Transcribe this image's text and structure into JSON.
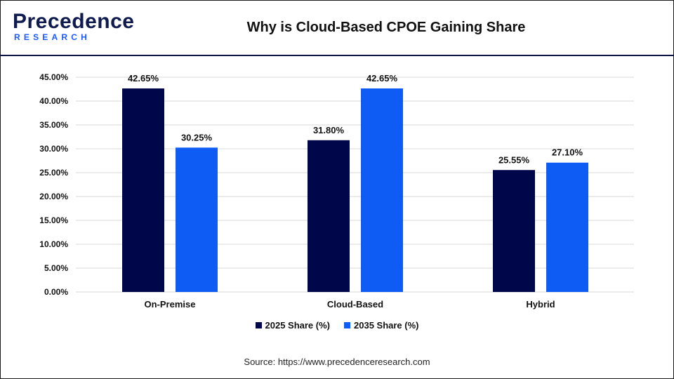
{
  "header": {
    "logo_main": "Precedence",
    "logo_sub": "RESEARCH",
    "title": "Why is Cloud-Based CPOE Gaining Share"
  },
  "source": "Source: https://www.precedenceresearch.com",
  "colors": {
    "series_2025": "#00064a",
    "series_2035": "#0f5cf5",
    "grid": "#d9d9d9",
    "brand_dark": "#0f1a4f",
    "brand_blue": "#1a5aff"
  },
  "chart_data": {
    "type": "bar",
    "title": "Why is Cloud-Based CPOE Gaining Share",
    "xlabel": "",
    "ylabel": "",
    "categories": [
      "On-Premise",
      "Cloud-Based",
      "Hybrid"
    ],
    "series": [
      {
        "name": "2025 Share (%)",
        "values": [
          42.65,
          31.8,
          25.55
        ],
        "labels": [
          "42.65%",
          "31.80%",
          "25.55%"
        ]
      },
      {
        "name": "2035 Share (%)",
        "values": [
          30.25,
          42.65,
          27.1
        ],
        "labels": [
          "30.25%",
          "42.65%",
          "27.10%"
        ]
      }
    ],
    "ylim": [
      0,
      45
    ],
    "yticks": [
      0,
      5,
      10,
      15,
      20,
      25,
      30,
      35,
      40,
      45
    ],
    "ytick_labels": [
      "0.00%",
      "5.00%",
      "10.00%",
      "15.00%",
      "20.00%",
      "25.00%",
      "30.00%",
      "35.00%",
      "40.00%",
      "45.00%"
    ],
    "grid": true,
    "legend_position": "bottom"
  }
}
